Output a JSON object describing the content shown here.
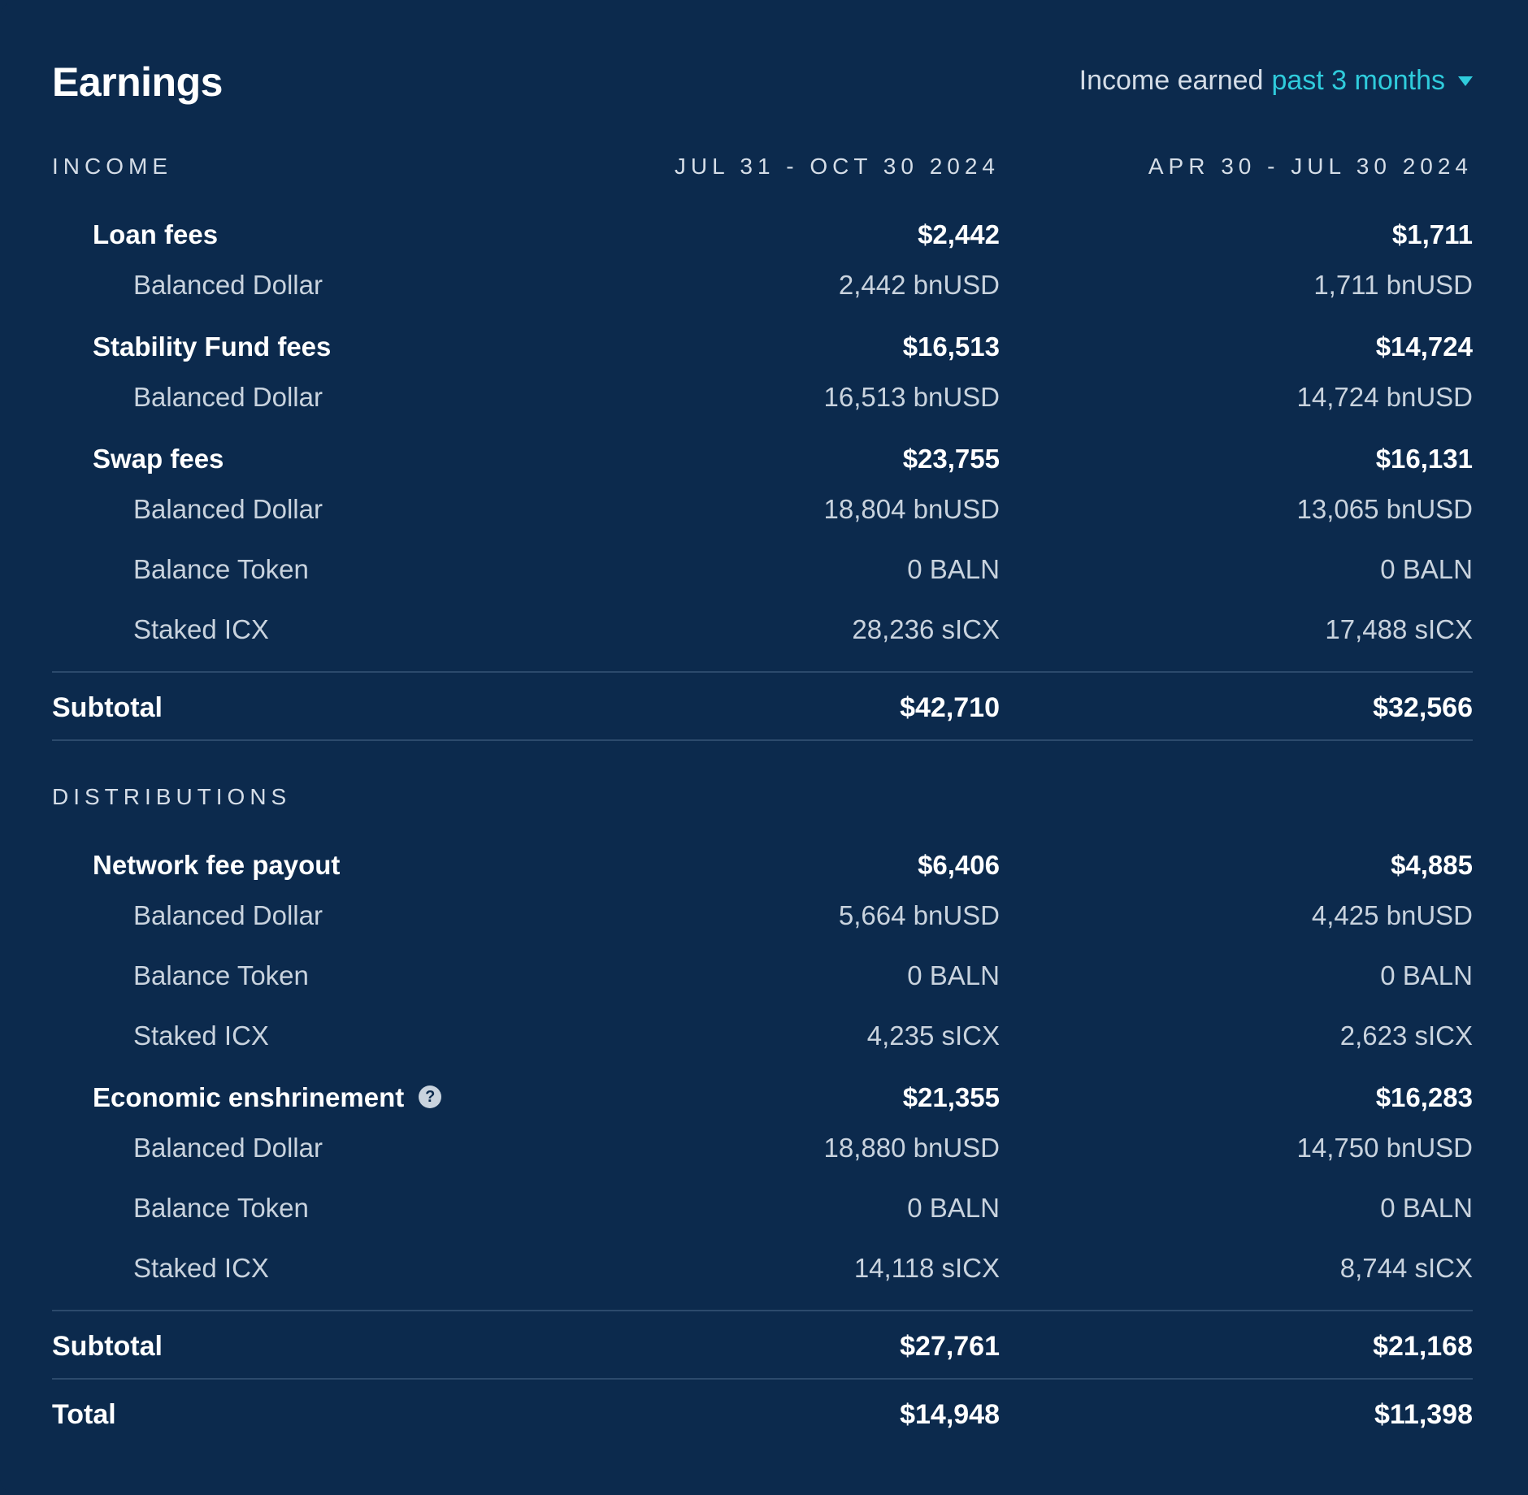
{
  "header": {
    "title": "Earnings",
    "period_prefix": "Income earned",
    "period_value": "past 3 months"
  },
  "columns": {
    "current": "JUL 31 - OCT 30 2024",
    "previous": "APR 30 - JUL 30 2024"
  },
  "income": {
    "label": "INCOME",
    "loan_fees": {
      "label": "Loan fees",
      "current": "$2,442",
      "previous": "$1,711",
      "items": [
        {
          "label": "Balanced Dollar",
          "current": "2,442 bnUSD",
          "previous": "1,711 bnUSD"
        }
      ]
    },
    "stability_fees": {
      "label": "Stability Fund fees",
      "current": "$16,513",
      "previous": "$14,724",
      "items": [
        {
          "label": "Balanced Dollar",
          "current": "16,513 bnUSD",
          "previous": "14,724 bnUSD"
        }
      ]
    },
    "swap_fees": {
      "label": "Swap fees",
      "current": "$23,755",
      "previous": "$16,131",
      "items": [
        {
          "label": "Balanced Dollar",
          "current": "18,804 bnUSD",
          "previous": "13,065 bnUSD"
        },
        {
          "label": "Balance Token",
          "current": "0 BALN",
          "previous": "0 BALN"
        },
        {
          "label": "Staked ICX",
          "current": "28,236 sICX",
          "previous": "17,488 sICX"
        }
      ]
    },
    "subtotal": {
      "label": "Subtotal",
      "current": "$42,710",
      "previous": "$32,566"
    }
  },
  "distributions": {
    "label": "DISTRIBUTIONS",
    "network_fee": {
      "label": "Network fee payout",
      "current": "$6,406",
      "previous": "$4,885",
      "items": [
        {
          "label": "Balanced Dollar",
          "current": "5,664 bnUSD",
          "previous": "4,425 bnUSD"
        },
        {
          "label": "Balance Token",
          "current": "0 BALN",
          "previous": "0 BALN"
        },
        {
          "label": "Staked ICX",
          "current": "4,235 sICX",
          "previous": "2,623 sICX"
        }
      ]
    },
    "enshrinement": {
      "label": "Economic enshrinement",
      "help_icon": "?",
      "current": "$21,355",
      "previous": "$16,283",
      "items": [
        {
          "label": "Balanced Dollar",
          "current": "18,880 bnUSD",
          "previous": "14,750 bnUSD"
        },
        {
          "label": "Balance Token",
          "current": "0 BALN",
          "previous": "0 BALN"
        },
        {
          "label": "Staked ICX",
          "current": "14,118 sICX",
          "previous": "8,744 sICX"
        }
      ]
    },
    "subtotal": {
      "label": "Subtotal",
      "current": "$27,761",
      "previous": "$21,168"
    }
  },
  "total": {
    "label": "Total",
    "current": "$14,948",
    "previous": "$11,398"
  },
  "colors": {
    "background": "#0c2a4d",
    "accent": "#2fccdc",
    "divider": "#2c4a6c"
  }
}
